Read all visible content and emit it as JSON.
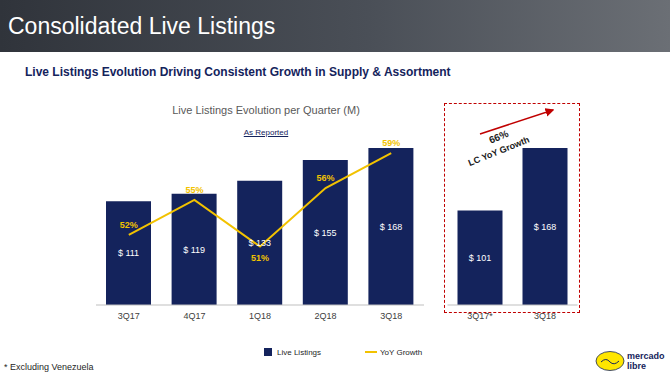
{
  "title": "Consolidated Live Listings",
  "subtitle": "Live Listings Evolution Driving Consistent Growth in Supply & Assortment",
  "footnote": "* Excluding Venezuela",
  "logo": [
    "mercado",
    "libre"
  ],
  "chart_data": [
    {
      "type": "bar",
      "title": "Live Listings Evolution per Quarter (M)",
      "subtitle": "As Reported",
      "categories": [
        "3Q17",
        "4Q17",
        "1Q18",
        "2Q18",
        "3Q18"
      ],
      "series": [
        {
          "name": "Live Listings",
          "type": "bar",
          "color": "#14235c",
          "values": [
            111,
            119,
            133,
            155,
            168
          ],
          "value_labels": [
            "$ 111",
            "$ 119",
            "$ 133",
            "$ 155",
            "$ 168"
          ]
        },
        {
          "name": "YoY Growth",
          "type": "line",
          "axis": "y2",
          "color": "#f2c200",
          "values": [
            52,
            55,
            51,
            56,
            59
          ],
          "value_labels": [
            "52%",
            "55%",
            "51%",
            "56%",
            "59%"
          ]
        }
      ],
      "ylim": [
        0,
        200
      ],
      "y2lim": [
        46,
        62
      ],
      "data_labels": true,
      "tick_labels": "x",
      "legend": "bottom"
    },
    {
      "type": "bar",
      "categories": [
        "3Q17*",
        "3Q18"
      ],
      "series": [
        {
          "name": "Live Listings",
          "type": "bar",
          "color": "#14235c",
          "values": [
            101,
            168
          ],
          "value_labels": [
            "$ 101",
            "$ 168"
          ]
        }
      ],
      "ylim": [
        0,
        200
      ],
      "data_labels": true,
      "tick_labels": "x",
      "annotations": [
        "66%",
        "LC YoY Growth"
      ]
    }
  ]
}
